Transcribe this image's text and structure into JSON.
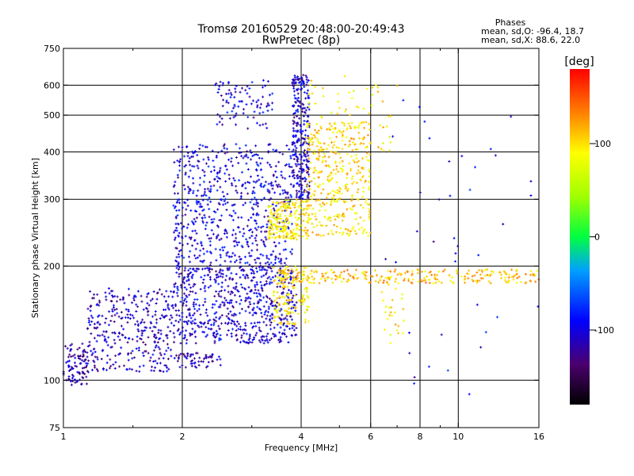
{
  "chart_data": {
    "type": "scatter",
    "title": "Tromsø 20160529 20:48:00-20:49:43",
    "subtitle": "RwPretec (8p)",
    "stats": {
      "heading": "Phases",
      "line_o": "mean, sd,O: -96.4, 18.7",
      "line_x": "mean, sd,X:  88.6, 22.0"
    },
    "xlabel": "Frequency [MHz]",
    "ylabel": "Stationary phase Virtual Height [km]",
    "x_scale": "log",
    "y_scale": "log",
    "xlim": [
      1,
      16
    ],
    "ylim": [
      75,
      750
    ],
    "x_ticks": [
      1,
      2,
      4,
      6,
      8,
      10,
      16
    ],
    "x_tick_labels": [
      "1",
      "2",
      "4",
      "6",
      "8",
      "10",
      "16"
    ],
    "x_minor_ticks": [
      1.5,
      3,
      5,
      7,
      9
    ],
    "y_ticks": [
      75,
      100,
      200,
      300,
      400,
      500,
      600,
      750
    ],
    "y_tick_labels": [
      "75",
      "100",
      "200",
      "300",
      "400",
      "500",
      "600",
      "750"
    ],
    "x_grid": [
      2,
      4,
      6,
      8,
      10
    ],
    "y_grid": [
      100,
      200,
      300,
      400,
      500,
      600
    ],
    "grid": true,
    "colorbar": {
      "label": "[deg]",
      "range": [
        -180,
        180
      ],
      "ticks": [
        100,
        0,
        -100
      ],
      "tick_labels": [
        "100",
        "0",
        "-100"
      ]
    },
    "point_color": "#1b30ff",
    "clusters": [
      {
        "f": [
          1.0,
          1.15
        ],
        "h": [
          97,
          125
        ],
        "phase": -120,
        "n": 90
      },
      {
        "f": [
          1.15,
          1.9
        ],
        "h": [
          105,
          175
        ],
        "phase": -110,
        "n": 340
      },
      {
        "f": [
          1.9,
          2.5
        ],
        "h": [
          108,
          118
        ],
        "phase": -120,
        "n": 60
      },
      {
        "f": [
          1.9,
          3.9
        ],
        "h": [
          125,
          200
        ],
        "phase": -105,
        "n": 650
      },
      {
        "f": [
          1.9,
          3.8
        ],
        "h": [
          200,
          420
        ],
        "phase": -100,
        "n": 650
      },
      {
        "f": [
          3.8,
          4.2
        ],
        "h": [
          300,
          640
        ],
        "phase": -105,
        "n": 280
      },
      {
        "f": [
          2.4,
          3.4
        ],
        "h": [
          460,
          620
        ],
        "phase": -100,
        "n": 90
      },
      {
        "f": [
          3.3,
          4.2
        ],
        "h": [
          235,
          300
        ],
        "phase": 95,
        "n": 220
      },
      {
        "f": [
          4.1,
          6.0
        ],
        "h": [
          240,
          480
        ],
        "phase": 100,
        "n": 400
      },
      {
        "f": [
          3.4,
          4.2
        ],
        "h": [
          140,
          200
        ],
        "phase": 95,
        "n": 140
      },
      {
        "f": [
          3.5,
          16.0
        ],
        "h": [
          180,
          196
        ],
        "phase": 110,
        "n": 260
      },
      {
        "f": [
          4.0,
          7.0
        ],
        "h": [
          400,
          640
        ],
        "phase": 95,
        "n": 60
      },
      {
        "f": [
          6.5,
          16.0
        ],
        "h": [
          85,
          560
        ],
        "phase": -100,
        "n": 40
      },
      {
        "f": [
          6.4,
          7.3
        ],
        "h": [
          120,
          190
        ],
        "phase": 100,
        "n": 30
      }
    ]
  }
}
